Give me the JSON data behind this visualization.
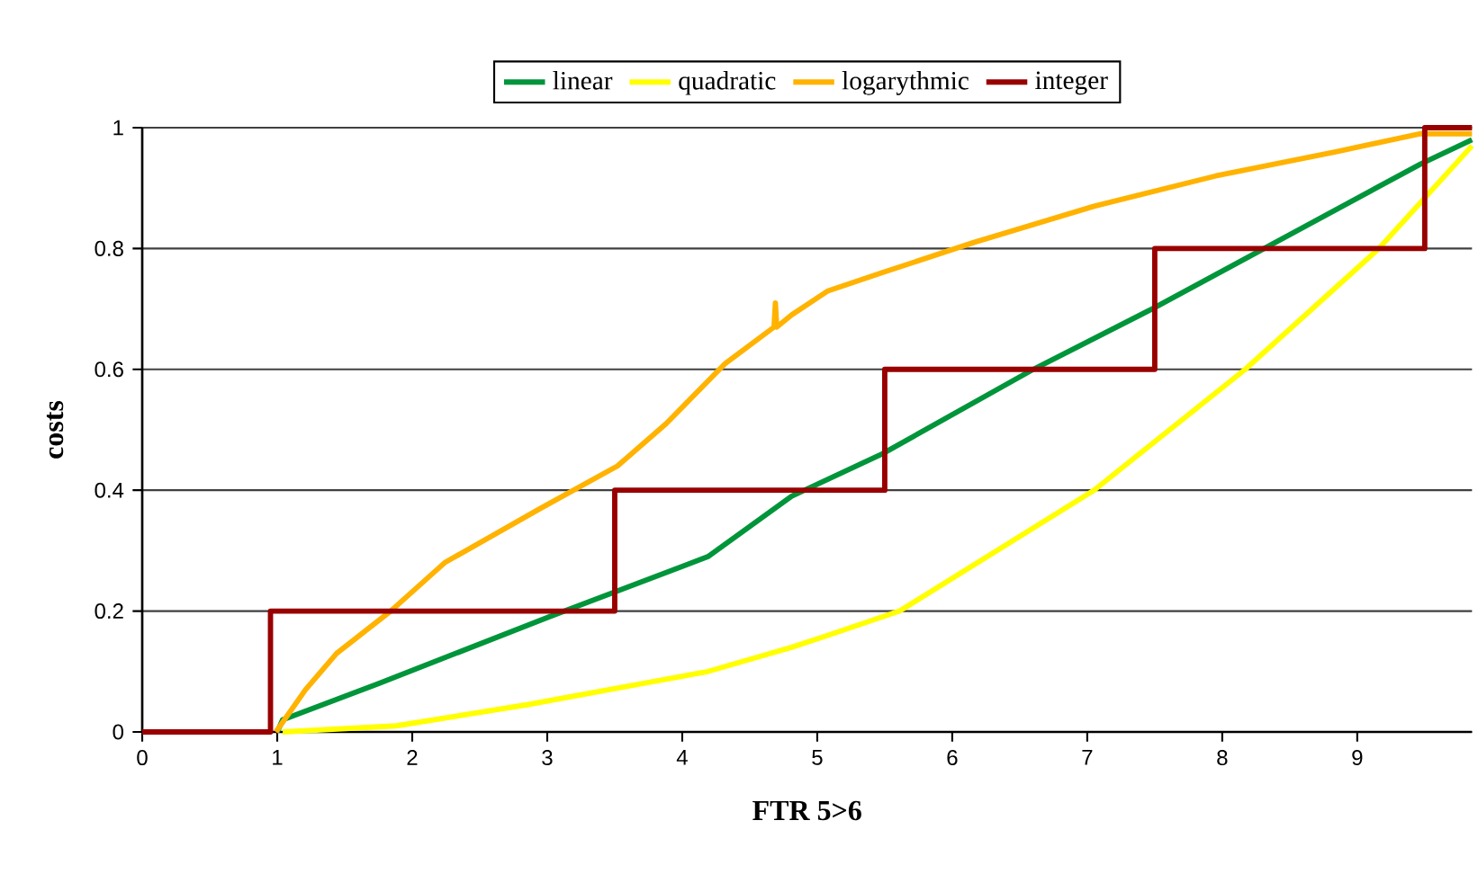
{
  "chart_data": {
    "type": "line",
    "xlabel": "FTR 5>6",
    "ylabel": "costs",
    "xlim": [
      0,
      9.85
    ],
    "xticks": [
      0,
      1,
      2,
      3,
      4,
      5,
      6,
      7,
      8,
      9
    ],
    "ylim": [
      0,
      1
    ],
    "yticks": [
      0,
      0.2,
      0.4,
      0.6,
      0.8,
      1
    ],
    "grid": "y",
    "legend": "top",
    "marker": "none",
    "line_style": "solid",
    "series": [
      {
        "name": "linear",
        "color": "#00953a",
        "x": [
          1.0,
          1.04,
          1.75,
          3.01,
          4.19,
          4.81,
          5.48,
          6.6,
          7.48,
          8.31,
          9.47,
          9.85
        ],
        "values": [
          0,
          0.02,
          0.08,
          0.19,
          0.29,
          0.39,
          0.46,
          0.6,
          0.7,
          0.8,
          0.94,
          0.98
        ]
      },
      {
        "name": "quadratic",
        "color": "#ffff00",
        "x": [
          1.04,
          1.88,
          2.85,
          4.19,
          4.81,
          5.08,
          5.61,
          7.05,
          8.17,
          9.16,
          9.85
        ],
        "values": [
          0,
          0.01,
          0.045,
          0.1,
          0.14,
          0.16,
          0.2,
          0.4,
          0.6,
          0.8,
          0.97
        ]
      },
      {
        "name": "logarythmic",
        "color": "#ffb300",
        "x": [
          0.99,
          1.21,
          1.44,
          1.84,
          2.24,
          2.95,
          3.52,
          3.88,
          4.32,
          4.68,
          4.69,
          4.7,
          4.81,
          5.08,
          5.48,
          6.16,
          7.05,
          7.95,
          8.84,
          9.47,
          9.85
        ],
        "values": [
          0,
          0.07,
          0.13,
          0.2,
          0.28,
          0.37,
          0.44,
          0.51,
          0.61,
          0.67,
          0.71,
          0.67,
          0.69,
          0.73,
          0.76,
          0.81,
          0.87,
          0.92,
          0.96,
          0.99,
          0.99
        ]
      },
      {
        "name": "integer",
        "type": "step",
        "color": "#990000",
        "x": [
          0,
          0.95,
          3.5,
          5.5,
          7.5,
          9.5,
          9.85
        ],
        "values": [
          0,
          0.2,
          0.4,
          0.6,
          0.8,
          1,
          1
        ]
      }
    ]
  }
}
